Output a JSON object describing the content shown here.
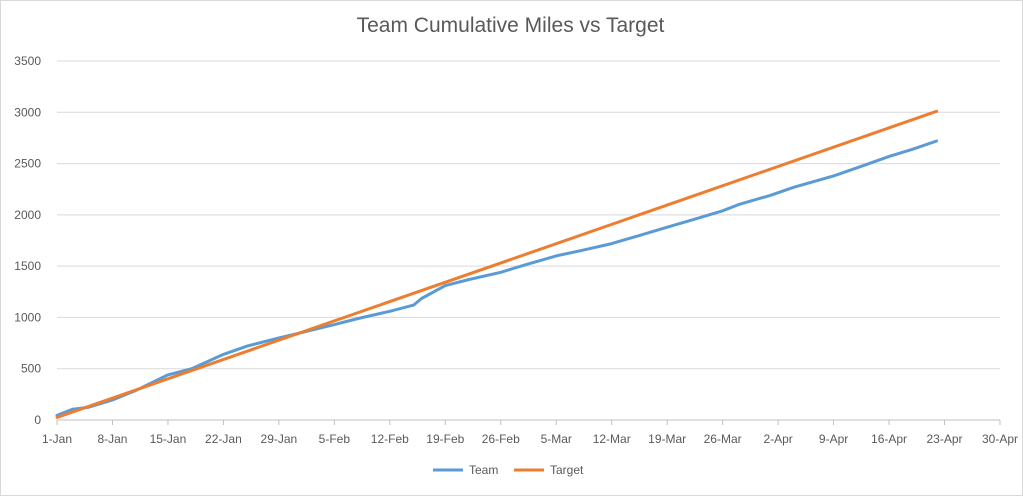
{
  "chart_data": {
    "type": "line",
    "title": "Team Cumulative Miles vs Target",
    "xlabel": "",
    "ylabel": "",
    "x_axis": {
      "type": "date",
      "range": [
        "1-Jan",
        "30-Apr"
      ],
      "ticks": [
        "1-Jan",
        "8-Jan",
        "15-Jan",
        "22-Jan",
        "29-Jan",
        "5-Feb",
        "12-Feb",
        "19-Feb",
        "26-Feb",
        "5-Mar",
        "12-Mar",
        "19-Mar",
        "26-Mar",
        "2-Apr",
        "9-Apr",
        "16-Apr",
        "23-Apr",
        "30-Apr"
      ]
    },
    "ylim": [
      0,
      3500
    ],
    "yticks": [
      0,
      500,
      1000,
      1500,
      2000,
      2500,
      3000,
      3500
    ],
    "grid": true,
    "legend": "bottom",
    "series": [
      {
        "name": "Team",
        "color": "#5b9bd5",
        "points": [
          [
            "1-Jan",
            45
          ],
          [
            "3-Jan",
            105
          ],
          [
            "5-Jan",
            125
          ],
          [
            "8-Jan",
            195
          ],
          [
            "11-Jan",
            290
          ],
          [
            "15-Jan",
            440
          ],
          [
            "18-Jan",
            500
          ],
          [
            "22-Jan",
            640
          ],
          [
            "25-Jan",
            720
          ],
          [
            "29-Jan",
            800
          ],
          [
            "1-Feb",
            855
          ],
          [
            "5-Feb",
            930
          ],
          [
            "8-Feb",
            990
          ],
          [
            "12-Feb",
            1060
          ],
          [
            "15-Feb",
            1120
          ],
          [
            "16-Feb",
            1185
          ],
          [
            "19-Feb",
            1310
          ],
          [
            "22-Feb",
            1370
          ],
          [
            "26-Feb",
            1440
          ],
          [
            "1-Mar",
            1510
          ],
          [
            "5-Mar",
            1600
          ],
          [
            "8-Mar",
            1650
          ],
          [
            "12-Mar",
            1720
          ],
          [
            "16-Mar",
            1810
          ],
          [
            "19-Mar",
            1880
          ],
          [
            "23-Mar",
            1970
          ],
          [
            "26-Mar",
            2040
          ],
          [
            "28-Mar",
            2100
          ],
          [
            "1-Apr",
            2190
          ],
          [
            "4-Apr",
            2270
          ],
          [
            "9-Apr",
            2380
          ],
          [
            "12-Apr",
            2460
          ],
          [
            "16-Apr",
            2570
          ],
          [
            "19-Apr",
            2640
          ],
          [
            "22-Apr",
            2720
          ]
        ]
      },
      {
        "name": "Target",
        "color": "#ed7d31",
        "points": [
          [
            "1-Jan",
            25
          ],
          [
            "22-Apr",
            3010
          ]
        ]
      }
    ]
  }
}
